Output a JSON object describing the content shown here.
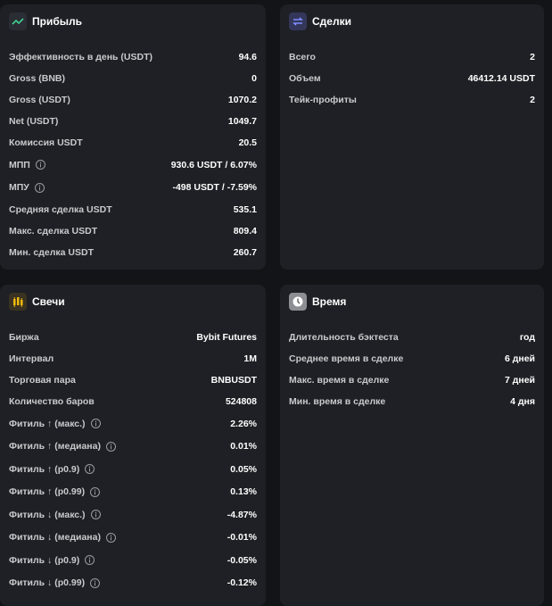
{
  "panels": [
    {
      "title": "Прибыль",
      "icon": "profit",
      "rows": [
        {
          "label": "Эффективность в день (USDT)",
          "value": "94.6",
          "info": false
        },
        {
          "label": "Gross (BNB)",
          "value": "0",
          "info": false
        },
        {
          "label": "Gross (USDT)",
          "value": "1070.2",
          "info": false
        },
        {
          "label": "Net (USDT)",
          "value": "1049.7",
          "info": false
        },
        {
          "label": "Комиссия USDT",
          "value": "20.5",
          "info": false
        },
        {
          "label": "МПП",
          "value": "930.6 USDT / 6.07%",
          "info": true
        },
        {
          "label": "МПУ",
          "value": "-498 USDT / -7.59%",
          "info": true
        },
        {
          "label": "Средняя сделка USDT",
          "value": "535.1",
          "info": false
        },
        {
          "label": "Макс. сделка USDT",
          "value": "809.4",
          "info": false
        },
        {
          "label": "Мин. сделка USDT",
          "value": "260.7",
          "info": false
        }
      ]
    },
    {
      "title": "Сделки",
      "icon": "deals",
      "rows": [
        {
          "label": "Всего",
          "value": "2",
          "info": false
        },
        {
          "label": "Объем",
          "value": "46412.14 USDT",
          "info": false
        },
        {
          "label": "Тейк-профиты",
          "value": "2",
          "info": false
        }
      ]
    },
    {
      "title": "Свечи",
      "icon": "candles",
      "rows": [
        {
          "label": "Биржа",
          "value": "Bybit Futures",
          "info": false
        },
        {
          "label": "Интервал",
          "value": "1M",
          "info": false
        },
        {
          "label": "Торговая пара",
          "value": "BNBUSDT",
          "info": false
        },
        {
          "label": "Количество баров",
          "value": "524808",
          "info": false
        },
        {
          "label": "Фитиль ↑ (макс.)",
          "value": "2.26%",
          "info": true
        },
        {
          "label": "Фитиль ↑ (медиана)",
          "value": "0.01%",
          "info": true
        },
        {
          "label": "Фитиль ↑ (p0.9)",
          "value": "0.05%",
          "info": true
        },
        {
          "label": "Фитиль ↑ (p0.99)",
          "value": "0.13%",
          "info": true
        },
        {
          "label": "Фитиль ↓ (макс.)",
          "value": "-4.87%",
          "info": true
        },
        {
          "label": "Фитиль ↓ (медиана)",
          "value": "-0.01%",
          "info": true
        },
        {
          "label": "Фитиль ↓ (p0.9)",
          "value": "-0.05%",
          "info": true
        },
        {
          "label": "Фитиль ↓ (p0.99)",
          "value": "-0.12%",
          "info": true
        }
      ]
    },
    {
      "title": "Время",
      "icon": "time",
      "rows": [
        {
          "label": "Длительность бэктеста",
          "value": "год",
          "info": false
        },
        {
          "label": "Среднее время в сделке",
          "value": "6 дней",
          "info": false
        },
        {
          "label": "Макс. время в сделке",
          "value": "7 дней",
          "info": false
        },
        {
          "label": "Мин. время в сделке",
          "value": "4 дня",
          "info": false
        }
      ]
    }
  ]
}
